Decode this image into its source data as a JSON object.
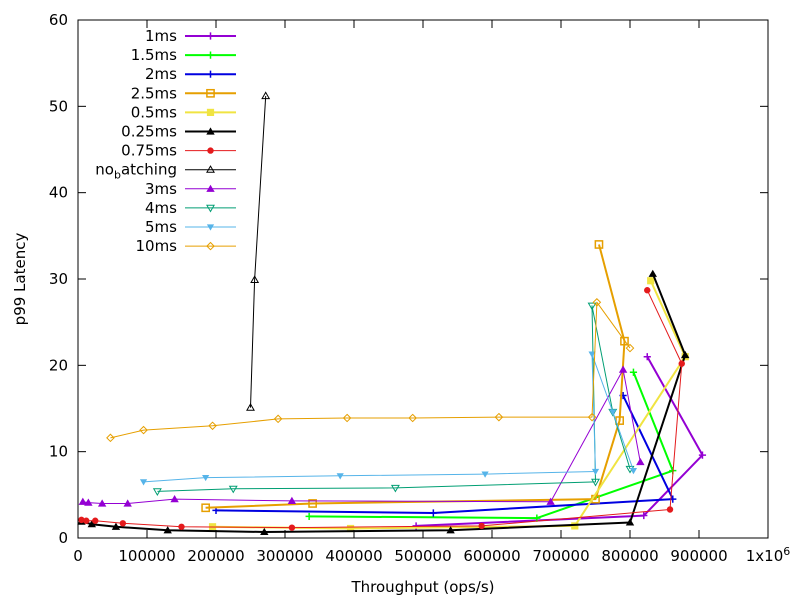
{
  "chart_data": {
    "type": "line",
    "title": "",
    "xlabel": "Throughput (ops/s)",
    "ylabel": "p99 Latency",
    "xlim": [
      0,
      1000000
    ],
    "ylim": [
      0,
      60
    ],
    "grid": false,
    "legend_position": "top-left",
    "x_ticks": [
      {
        "value": 0,
        "label": "0"
      },
      {
        "value": 100000,
        "label": "100000"
      },
      {
        "value": 200000,
        "label": "200000"
      },
      {
        "value": 300000,
        "label": "300000"
      },
      {
        "value": 400000,
        "label": "400000"
      },
      {
        "value": 500000,
        "label": "500000"
      },
      {
        "value": 600000,
        "label": "600000"
      },
      {
        "value": 700000,
        "label": "700000"
      },
      {
        "value": 800000,
        "label": "800000"
      },
      {
        "value": 900000,
        "label": "900000"
      },
      {
        "value": 1000000,
        "label": "1x10",
        "sup": "6"
      }
    ],
    "y_ticks": [
      {
        "value": 0,
        "label": "0"
      },
      {
        "value": 10,
        "label": "10"
      },
      {
        "value": 20,
        "label": "20"
      },
      {
        "value": 30,
        "label": "30"
      },
      {
        "value": 40,
        "label": "40"
      },
      {
        "value": 50,
        "label": "50"
      },
      {
        "value": 60,
        "label": "60"
      }
    ],
    "series": [
      {
        "name": "1ms",
        "color": "#9400d3",
        "marker": "plus",
        "width": 2,
        "points": [
          [
            490000,
            1.4
          ],
          [
            820000,
            2.6
          ],
          [
            905000,
            9.6
          ],
          [
            825000,
            21.0
          ]
        ]
      },
      {
        "name": "1.5ms",
        "color": "#00ff00",
        "marker": "plus",
        "width": 2,
        "points": [
          [
            335000,
            2.5
          ],
          [
            665000,
            2.3
          ],
          [
            862000,
            7.8
          ],
          [
            805000,
            19.2
          ]
        ]
      },
      {
        "name": "2ms",
        "color": "#0000e0",
        "marker": "plus",
        "width": 2,
        "points": [
          [
            200000,
            3.2
          ],
          [
            515000,
            2.9
          ],
          [
            862000,
            4.5
          ],
          [
            790000,
            16.5
          ]
        ]
      },
      {
        "name": "2.5ms",
        "color": "#e69f00",
        "marker": "square-open",
        "width": 2,
        "points": [
          [
            185000,
            3.5
          ],
          [
            340000,
            4.0
          ],
          [
            750000,
            4.5
          ],
          [
            785000,
            13.6
          ],
          [
            792000,
            22.8
          ],
          [
            755000,
            34.0
          ]
        ]
      },
      {
        "name": "0.5ms",
        "color": "#f0e442",
        "marker": "square-filled",
        "width": 2,
        "points": [
          [
            195000,
            1.3
          ],
          [
            395000,
            1.1
          ],
          [
            720000,
            1.4
          ],
          [
            880000,
            21.0
          ],
          [
            830000,
            29.8
          ]
        ]
      },
      {
        "name": "0.25ms",
        "color": "#000000",
        "marker": "triangle-filled",
        "width": 2,
        "points": [
          [
            5000,
            1.9
          ],
          [
            20000,
            1.6
          ],
          [
            55000,
            1.3
          ],
          [
            130000,
            0.9
          ],
          [
            270000,
            0.7
          ],
          [
            540000,
            0.9
          ],
          [
            800000,
            1.8
          ],
          [
            880000,
            21.2
          ],
          [
            833000,
            30.6
          ]
        ]
      },
      {
        "name": "0.75ms",
        "color": "#e41a1c",
        "marker": "circle-filled",
        "width": 1,
        "points": [
          [
            5000,
            2.1
          ],
          [
            12000,
            2.0
          ],
          [
            25000,
            2.0
          ],
          [
            65000,
            1.7
          ],
          [
            150000,
            1.3
          ],
          [
            310000,
            1.2
          ],
          [
            585000,
            1.4
          ],
          [
            858000,
            3.3
          ],
          [
            875000,
            20.2
          ],
          [
            825000,
            28.7
          ]
        ]
      },
      {
        "name": "no_batching",
        "label_main": "no",
        "label_sub": "b",
        "label_rest": "atching",
        "color": "#000000",
        "marker": "triangle-open",
        "width": 1,
        "points": [
          [
            250000,
            15.1
          ],
          [
            256000,
            29.9
          ],
          [
            272000,
            51.2
          ]
        ]
      },
      {
        "name": "3ms",
        "color": "#9400d3",
        "marker": "triangle-filled",
        "width": 1,
        "points": [
          [
            7000,
            4.2
          ],
          [
            15000,
            4.1
          ],
          [
            35000,
            4.0
          ],
          [
            72000,
            4.0
          ],
          [
            140000,
            4.5
          ],
          [
            310000,
            4.3
          ],
          [
            685000,
            4.2
          ],
          [
            790000,
            19.5
          ],
          [
            815000,
            8.8
          ]
        ]
      },
      {
        "name": "4ms",
        "color": "#009e73",
        "marker": "triangle-down-open",
        "width": 1,
        "points": [
          [
            115000,
            5.4
          ],
          [
            225000,
            5.7
          ],
          [
            460000,
            5.8
          ],
          [
            750000,
            6.5
          ],
          [
            745000,
            26.9
          ],
          [
            775000,
            14.6
          ],
          [
            800000,
            8.0
          ]
        ]
      },
      {
        "name": "5ms",
        "color": "#56b4e9",
        "marker": "triangle-down-filled",
        "width": 1,
        "points": [
          [
            95000,
            6.5
          ],
          [
            185000,
            7.0
          ],
          [
            380000,
            7.2
          ],
          [
            590000,
            7.4
          ],
          [
            750000,
            7.7
          ],
          [
            745000,
            21.3
          ],
          [
            775000,
            14.6
          ],
          [
            805000,
            7.8
          ]
        ]
      },
      {
        "name": "10ms",
        "color": "#e69f00",
        "marker": "diamond-open",
        "width": 1,
        "points": [
          [
            47000,
            11.6
          ],
          [
            95000,
            12.5
          ],
          [
            195000,
            13.0
          ],
          [
            290000,
            13.8
          ],
          [
            390000,
            13.9
          ],
          [
            485000,
            13.9
          ],
          [
            610000,
            14.0
          ],
          [
            745000,
            14.0
          ],
          [
            752000,
            27.3
          ],
          [
            800000,
            22.0
          ]
        ]
      }
    ]
  }
}
